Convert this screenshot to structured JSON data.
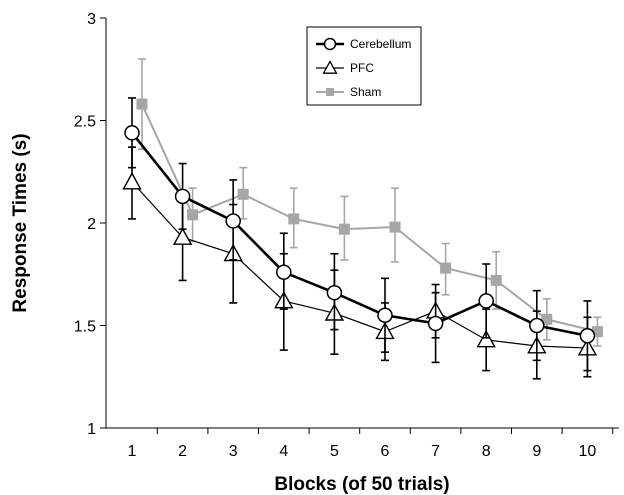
{
  "chart_data": {
    "type": "line",
    "title": "",
    "xlabel": "Blocks (of 50 trials)",
    "ylabel": "Response Times (s)",
    "ylim": [
      1,
      3
    ],
    "yticks": [
      "1",
      "1.5",
      "2",
      "2.5",
      "3"
    ],
    "x": [
      1,
      2,
      3,
      4,
      5,
      6,
      7,
      8,
      9,
      10
    ],
    "xticks": [
      "1",
      "2",
      "3",
      "4",
      "5",
      "6",
      "7",
      "8",
      "9",
      "10"
    ],
    "legend_position": "top-center",
    "series": [
      {
        "name": "Cerebellum",
        "color": "#000000",
        "marker": "circle",
        "values": [
          2.44,
          2.13,
          2.01,
          1.76,
          1.66,
          1.55,
          1.51,
          1.62,
          1.5,
          1.45
        ],
        "err_upper": [
          2.61,
          2.29,
          2.21,
          1.95,
          1.85,
          1.73,
          1.66,
          1.8,
          1.67,
          1.62
        ],
        "err_lower": [
          2.27,
          1.97,
          1.82,
          1.58,
          1.48,
          1.37,
          1.32,
          1.44,
          1.33,
          1.28
        ]
      },
      {
        "name": "PFC",
        "color": "#000000",
        "marker": "triangle",
        "values": [
          2.2,
          1.93,
          1.85,
          1.62,
          1.56,
          1.47,
          1.57,
          1.43,
          1.4,
          1.39
        ],
        "err_upper": [
          2.37,
          2.15,
          2.09,
          1.85,
          1.77,
          1.61,
          1.7,
          1.58,
          1.57,
          1.54
        ],
        "err_lower": [
          2.02,
          1.72,
          1.61,
          1.38,
          1.36,
          1.33,
          1.44,
          1.28,
          1.24,
          1.25
        ]
      },
      {
        "name": "Sham",
        "color": "#a6a6a6",
        "marker": "square",
        "values": [
          2.58,
          2.04,
          2.14,
          2.02,
          1.97,
          1.98,
          1.78,
          1.72,
          1.53,
          1.47
        ],
        "err_upper": [
          2.8,
          2.17,
          2.27,
          2.17,
          2.13,
          2.17,
          1.9,
          1.86,
          1.63,
          1.54
        ],
        "err_lower": [
          2.36,
          1.91,
          2.02,
          1.88,
          1.82,
          1.81,
          1.65,
          1.58,
          1.43,
          1.4
        ]
      }
    ]
  }
}
